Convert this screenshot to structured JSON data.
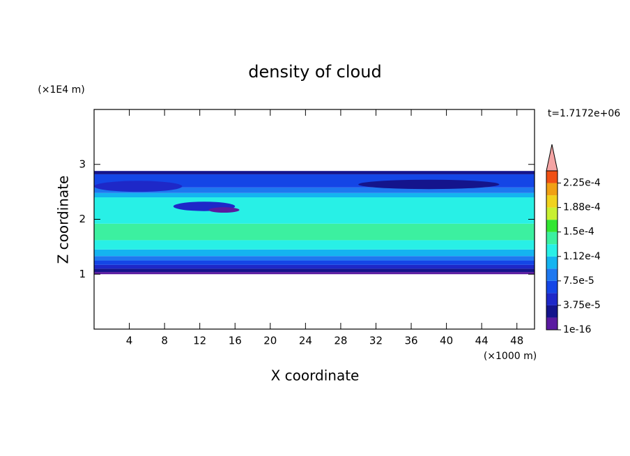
{
  "chart_data": {
    "type": "contour",
    "title": "density of cloud",
    "xlabel": "X coordinate",
    "ylabel": "Z coordinate",
    "x_unit_label": "(×1000 m)",
    "y_unit_label": "(×1E4 m)",
    "annotation": "t=1.7172e+06",
    "xlim": [
      0,
      50
    ],
    "xticks": [
      4,
      8,
      12,
      16,
      20,
      24,
      28,
      32,
      36,
      40,
      44,
      48
    ],
    "ylim": [
      0,
      4
    ],
    "yticks": [
      1,
      2,
      3
    ],
    "colorbar": {
      "levels": [
        1e-16,
        1.875e-05,
        3.75e-05,
        5.625e-05,
        7.5e-05,
        9.375e-05,
        0.0001125,
        0.00013125,
        0.00015,
        0.00016875,
        0.0001875,
        0.00020625,
        0.000225,
        0.00024375
      ],
      "colors": [
        "#5a1aa0",
        "#14148c",
        "#1e28c8",
        "#1446e6",
        "#1e78f0",
        "#14b4f0",
        "#28f0e6",
        "#3cf0a0",
        "#32e632",
        "#c8f032",
        "#f0d21e",
        "#f0a014",
        "#f05014"
      ],
      "extend_color": "#f4a4a4",
      "ticks": [
        {
          "value": 1e-16,
          "label": "1e-16"
        },
        {
          "value": 3.75e-05,
          "label": "3.75e-5"
        },
        {
          "value": 7.5e-05,
          "label": "7.5e-5"
        },
        {
          "value": 0.0001125,
          "label": "1.12e-4"
        },
        {
          "value": 0.00015,
          "label": "1.5e-4"
        },
        {
          "value": 0.0001875,
          "label": "1.88e-4"
        },
        {
          "value": 0.000225,
          "label": "2.25e-4"
        }
      ]
    },
    "layers": [
      {
        "z": [
          1.0,
          1.04
        ],
        "value": 9e-06
      },
      {
        "z": [
          1.04,
          1.1
        ],
        "value": 2.8e-05
      },
      {
        "z": [
          1.1,
          1.17
        ],
        "value": 4.7e-05
      },
      {
        "z": [
          1.17,
          1.25
        ],
        "value": 6.6e-05
      },
      {
        "z": [
          1.25,
          1.33
        ],
        "value": 8.4e-05
      },
      {
        "z": [
          1.33,
          1.45
        ],
        "value": 0.000103
      },
      {
        "z": [
          1.45,
          1.62
        ],
        "value": 0.000122
      },
      {
        "z": [
          1.62,
          1.92
        ],
        "value": 0.00014
      },
      {
        "z": [
          1.92,
          2.4
        ],
        "value": 0.000122
      },
      {
        "z": [
          2.4,
          2.48
        ],
        "value": 0.000103
      },
      {
        "z": [
          2.48,
          2.58
        ],
        "value": 8.4e-05
      },
      {
        "z": [
          2.58,
          2.82
        ],
        "value": 6.6e-05
      },
      {
        "z": [
          2.82,
          2.88
        ],
        "value": 2.8e-05
      }
    ],
    "patches": [
      {
        "x": [
          0,
          10
        ],
        "z": [
          2.5,
          2.7
        ],
        "value": 4.7e-05
      },
      {
        "x": [
          9,
          16
        ],
        "z": [
          2.15,
          2.32
        ],
        "value": 4.7e-05
      },
      {
        "x": [
          13,
          16.5
        ],
        "z": [
          2.12,
          2.22
        ],
        "value": 9e-06
      },
      {
        "x": [
          30,
          46
        ],
        "z": [
          2.55,
          2.72
        ],
        "value": 2.8e-05
      }
    ]
  }
}
